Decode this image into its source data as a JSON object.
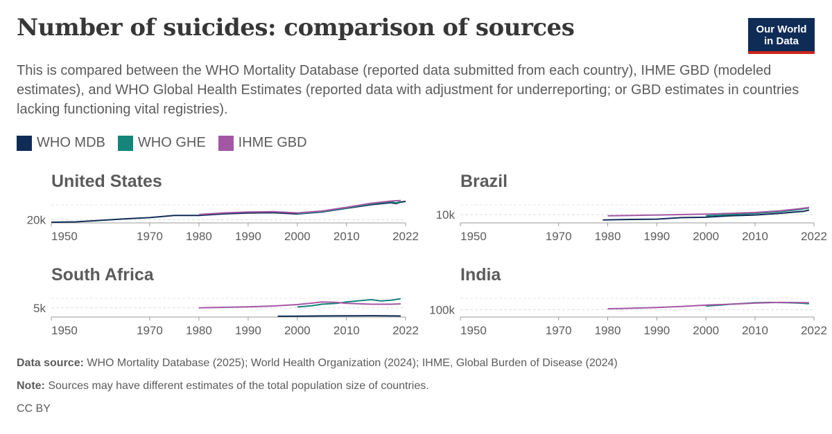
{
  "header": {
    "title": "Number of suicides: comparison of sources",
    "subtitle": "This is compared between the WHO Mortality Database (reported data submitted from each country), IHME GBD (modeled estimates), and WHO Global Health Estimates (reported data with adjustment for underreporting; or GBD estimates in countries lacking functioning vital registries).",
    "logo_line1": "Our World",
    "logo_line2": "in Data"
  },
  "legend": [
    {
      "label": "WHO MDB",
      "color": "#0f2c57"
    },
    {
      "label": "WHO GHE",
      "color": "#13857a"
    },
    {
      "label": "IHME GBD",
      "color": "#a357a3"
    }
  ],
  "footer": {
    "source_label": "Data source:",
    "source_text": "WHO Mortality Database (2025); World Health Organization (2024); IHME, Global Burden of Disease (2024)",
    "note_label": "Note:",
    "note_text": "Sources may have different estimates of the total population size of countries.",
    "license": "CC BY"
  },
  "chart_data": [
    {
      "type": "line",
      "title": "United States",
      "x_ticks": [
        1950,
        1970,
        1980,
        1990,
        2000,
        2010,
        2022
      ],
      "xlim": [
        1950,
        2022
      ],
      "ylim": [
        15000,
        55000
      ],
      "y_tick_labels": [
        {
          "value": 20000,
          "label": "20k"
        }
      ],
      "series": [
        {
          "name": "WHO MDB",
          "color": "#0f2c57",
          "x": [
            1950,
            1955,
            1960,
            1965,
            1970,
            1975,
            1980,
            1985,
            1990,
            1995,
            2000,
            2005,
            2010,
            2015,
            2019,
            2020,
            2021,
            2022
          ],
          "y": [
            16000,
            16700,
            19000,
            21500,
            23500,
            27000,
            26900,
            29400,
            30900,
            31300,
            29300,
            32600,
            38400,
            44200,
            47500,
            45900,
            48200,
            49500
          ]
        },
        {
          "name": "WHO GHE",
          "color": "#13857a",
          "x": [
            2000,
            2005,
            2010,
            2015,
            2019,
            2020,
            2021
          ],
          "y": [
            29800,
            33000,
            39000,
            45500,
            49000,
            47000,
            49000
          ]
        },
        {
          "name": "IHME GBD",
          "color": "#a357a3",
          "x": [
            1980,
            1985,
            1990,
            1995,
            2000,
            2005,
            2010,
            2015,
            2019,
            2021
          ],
          "y": [
            28500,
            31000,
            32500,
            33000,
            31000,
            34000,
            40000,
            46500,
            50000,
            51000
          ]
        }
      ]
    },
    {
      "type": "line",
      "title": "Brazil",
      "x_ticks": [
        1950,
        1970,
        1980,
        1990,
        2000,
        2010,
        2022
      ],
      "xlim": [
        1950,
        2022
      ],
      "ylim": [
        0,
        30000
      ],
      "y_tick_labels": [
        {
          "value": 10000,
          "label": "10k"
        }
      ],
      "series": [
        {
          "name": "WHO MDB",
          "color": "#0f2c57",
          "x": [
            1979,
            1985,
            1990,
            1995,
            2000,
            2005,
            2010,
            2015,
            2020,
            2021
          ],
          "y": [
            3600,
            4200,
            4500,
            6300,
            6800,
            8500,
            9500,
            11500,
            14000,
            15500
          ]
        },
        {
          "name": "WHO GHE",
          "color": "#13857a",
          "x": [
            2000,
            2005,
            2010,
            2015,
            2019,
            2021
          ],
          "y": [
            8500,
            10000,
            11500,
            13500,
            16000,
            18000
          ]
        },
        {
          "name": "IHME GBD",
          "color": "#a357a3",
          "x": [
            1980,
            1985,
            1990,
            1995,
            2000,
            2005,
            2010,
            2015,
            2019,
            2021
          ],
          "y": [
            8500,
            9000,
            9500,
            10000,
            10500,
            11500,
            12500,
            14500,
            17000,
            18500
          ]
        }
      ]
    },
    {
      "type": "line",
      "title": "South Africa",
      "x_ticks": [
        1950,
        1970,
        1980,
        1990,
        2000,
        2010,
        2022
      ],
      "xlim": [
        1950,
        2022
      ],
      "ylim": [
        0,
        14000
      ],
      "y_tick_labels": [
        {
          "value": 5000,
          "label": "5k"
        }
      ],
      "series": [
        {
          "name": "WHO MDB",
          "color": "#0f2c57",
          "x": [
            1996,
            2000,
            2005,
            2010,
            2015,
            2020,
            2021
          ],
          "y": [
            400,
            500,
            600,
            650,
            700,
            600,
            550
          ]
        },
        {
          "name": "WHO GHE",
          "color": "#13857a",
          "x": [
            2000,
            2003,
            2005,
            2008,
            2010,
            2013,
            2015,
            2017,
            2019,
            2021
          ],
          "y": [
            5500,
            6200,
            7000,
            7500,
            8200,
            9000,
            9500,
            8800,
            9200,
            10000
          ]
        },
        {
          "name": "IHME GBD",
          "color": "#a357a3",
          "x": [
            1980,
            1985,
            1990,
            1995,
            2000,
            2003,
            2005,
            2008,
            2010,
            2015,
            2019,
            2021
          ],
          "y": [
            5000,
            5300,
            5600,
            6000,
            6800,
            7600,
            8200,
            8000,
            7500,
            7000,
            7000,
            7200
          ]
        }
      ]
    },
    {
      "type": "line",
      "title": "India",
      "x_ticks": [
        1950,
        1970,
        1980,
        1990,
        2000,
        2010,
        2022
      ],
      "xlim": [
        1950,
        2022
      ],
      "ylim": [
        60000,
        200000
      ],
      "y_tick_labels": [
        {
          "value": 100000,
          "label": "100k"
        }
      ],
      "series": [
        {
          "name": "WHO GHE",
          "color": "#13857a",
          "x": [
            2000,
            2003,
            2005,
            2008,
            2010,
            2013,
            2015,
            2017,
            2019,
            2021
          ],
          "y": [
            120000,
            125000,
            130000,
            135000,
            138000,
            140000,
            139000,
            138000,
            136000,
            133000
          ]
        },
        {
          "name": "IHME GBD",
          "color": "#a357a3",
          "x": [
            1980,
            1985,
            1990,
            1995,
            2000,
            2005,
            2010,
            2015,
            2019,
            2021
          ],
          "y": [
            105000,
            108000,
            112000,
            118000,
            125000,
            130000,
            136000,
            140000,
            139000,
            138000
          ]
        }
      ]
    }
  ]
}
